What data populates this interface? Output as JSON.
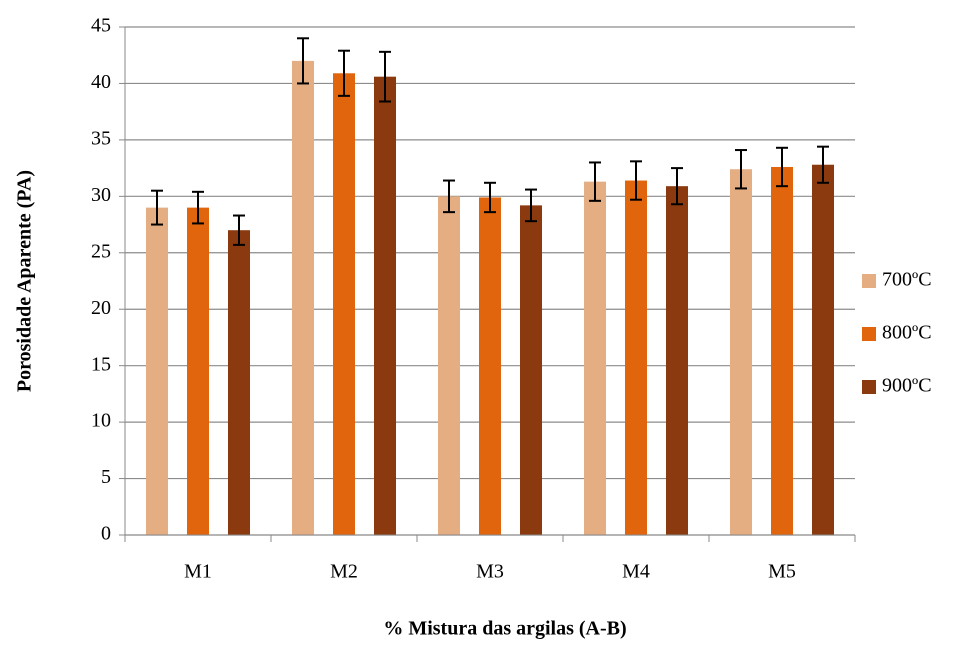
{
  "chart_data": {
    "type": "bar",
    "x_label": "% Mistura das argilas (A-B)",
    "y_label": "Porosidade Aparente (PA)",
    "categories": [
      "M1",
      "M2",
      "M3",
      "M4",
      "M5"
    ],
    "series": [
      {
        "name": "700ºC",
        "color": "#e4ad82",
        "values": [
          29,
          42,
          30,
          31.3,
          32.4
        ],
        "errors": [
          1.5,
          2,
          1.4,
          1.7,
          1.7
        ]
      },
      {
        "name": "800ºC",
        "color": "#e0650c",
        "values": [
          29,
          40.9,
          29.9,
          31.4,
          32.6
        ],
        "errors": [
          1.4,
          2,
          1.3,
          1.7,
          1.7
        ]
      },
      {
        "name": "900ºC",
        "color": "#8a3a0e",
        "values": [
          27,
          40.6,
          29.2,
          30.9,
          32.8
        ],
        "errors": [
          1.3,
          2.2,
          1.4,
          1.6,
          1.6
        ]
      }
    ],
    "ylim": [
      0,
      45
    ],
    "yticks": [
      0,
      5,
      10,
      15,
      20,
      25,
      30,
      35,
      40,
      45
    ],
    "grid": true,
    "legend": "right"
  }
}
